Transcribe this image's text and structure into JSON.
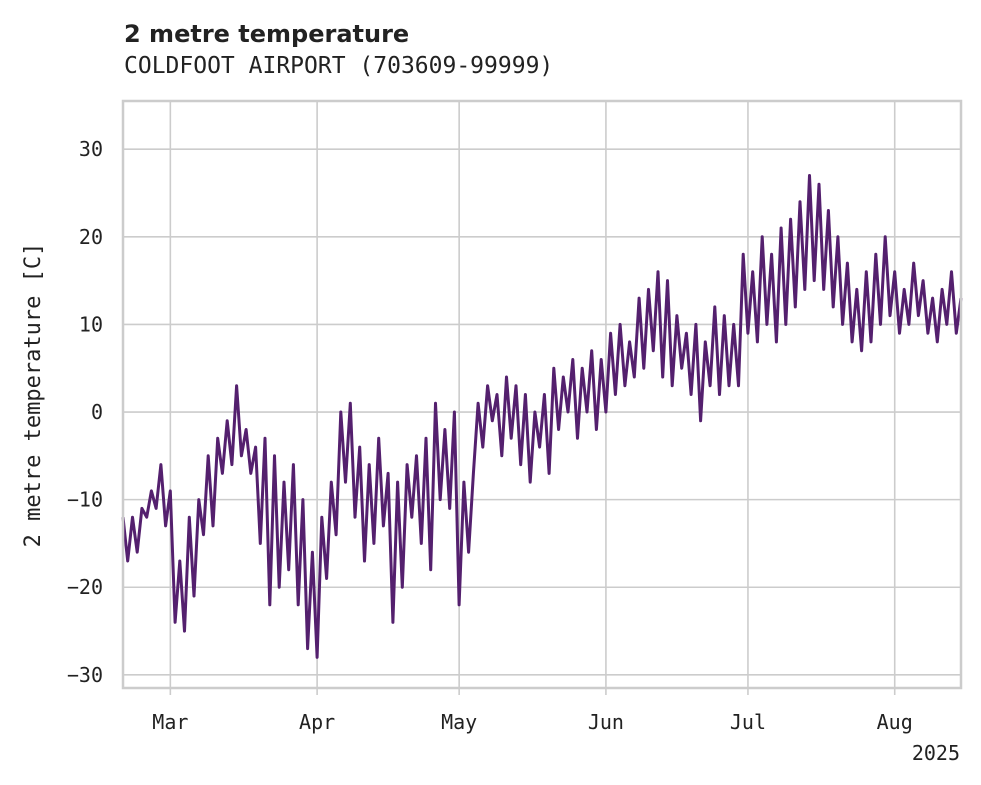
{
  "chart_data": {
    "type": "line",
    "title": "2 metre temperature",
    "subtitle": "COLDFOOT AIRPORT (703609-99999)",
    "xlabel": "",
    "ylabel": "2 metre temperature [C]",
    "x_range": [
      "2025-02-19",
      "2025-08-15"
    ],
    "ylim": [
      -31.5,
      35.5
    ],
    "y_ticks": [
      -30,
      -20,
      -10,
      0,
      10,
      20,
      30
    ],
    "x_ticks": [
      {
        "date": "2025-03-01",
        "label": "Mar"
      },
      {
        "date": "2025-04-01",
        "label": "Apr"
      },
      {
        "date": "2025-05-01",
        "label": "May"
      },
      {
        "date": "2025-06-01",
        "label": "Jun"
      },
      {
        "date": "2025-07-01",
        "label": "Jul"
      },
      {
        "date": "2025-08-01",
        "label": "Aug"
      }
    ],
    "year_label": "2025",
    "grid": true,
    "line_color": "#54206e",
    "series": [
      {
        "values": [
          {
            "x": "2025-02-19",
            "y": -12
          },
          {
            "x": "2025-02-20",
            "y": -17
          },
          {
            "x": "2025-02-21",
            "y": -12
          },
          {
            "x": "2025-02-22",
            "y": -16
          },
          {
            "x": "2025-02-23",
            "y": -11
          },
          {
            "x": "2025-02-24",
            "y": -12
          },
          {
            "x": "2025-02-25",
            "y": -9
          },
          {
            "x": "2025-02-26",
            "y": -11
          },
          {
            "x": "2025-02-27",
            "y": -6
          },
          {
            "x": "2025-02-28",
            "y": -13
          },
          {
            "x": "2025-03-01",
            "y": -9
          },
          {
            "x": "2025-03-02",
            "y": -24
          },
          {
            "x": "2025-03-03",
            "y": -17
          },
          {
            "x": "2025-03-04",
            "y": -25
          },
          {
            "x": "2025-03-05",
            "y": -12
          },
          {
            "x": "2025-03-06",
            "y": -21
          },
          {
            "x": "2025-03-07",
            "y": -10
          },
          {
            "x": "2025-03-08",
            "y": -14
          },
          {
            "x": "2025-03-09",
            "y": -5
          },
          {
            "x": "2025-03-10",
            "y": -13
          },
          {
            "x": "2025-03-11",
            "y": -3
          },
          {
            "x": "2025-03-12",
            "y": -7
          },
          {
            "x": "2025-03-13",
            "y": -1
          },
          {
            "x": "2025-03-14",
            "y": -6
          },
          {
            "x": "2025-03-15",
            "y": 3
          },
          {
            "x": "2025-03-16",
            "y": -5
          },
          {
            "x": "2025-03-17",
            "y": -2
          },
          {
            "x": "2025-03-18",
            "y": -7
          },
          {
            "x": "2025-03-19",
            "y": -4
          },
          {
            "x": "2025-03-20",
            "y": -15
          },
          {
            "x": "2025-03-21",
            "y": -3
          },
          {
            "x": "2025-03-22",
            "y": -22
          },
          {
            "x": "2025-03-23",
            "y": -5
          },
          {
            "x": "2025-03-24",
            "y": -20
          },
          {
            "x": "2025-03-25",
            "y": -8
          },
          {
            "x": "2025-03-26",
            "y": -18
          },
          {
            "x": "2025-03-27",
            "y": -6
          },
          {
            "x": "2025-03-28",
            "y": -22
          },
          {
            "x": "2025-03-29",
            "y": -10
          },
          {
            "x": "2025-03-30",
            "y": -27
          },
          {
            "x": "2025-03-31",
            "y": -16
          },
          {
            "x": "2025-04-01",
            "y": -28
          },
          {
            "x": "2025-04-02",
            "y": -12
          },
          {
            "x": "2025-04-03",
            "y": -19
          },
          {
            "x": "2025-04-04",
            "y": -8
          },
          {
            "x": "2025-04-05",
            "y": -14
          },
          {
            "x": "2025-04-06",
            "y": 0
          },
          {
            "x": "2025-04-07",
            "y": -8
          },
          {
            "x": "2025-04-08",
            "y": 1
          },
          {
            "x": "2025-04-09",
            "y": -12
          },
          {
            "x": "2025-04-10",
            "y": -4
          },
          {
            "x": "2025-04-11",
            "y": -17
          },
          {
            "x": "2025-04-12",
            "y": -6
          },
          {
            "x": "2025-04-13",
            "y": -15
          },
          {
            "x": "2025-04-14",
            "y": -3
          },
          {
            "x": "2025-04-15",
            "y": -13
          },
          {
            "x": "2025-04-16",
            "y": -7
          },
          {
            "x": "2025-04-17",
            "y": -24
          },
          {
            "x": "2025-04-18",
            "y": -8
          },
          {
            "x": "2025-04-19",
            "y": -20
          },
          {
            "x": "2025-04-20",
            "y": -6
          },
          {
            "x": "2025-04-21",
            "y": -12
          },
          {
            "x": "2025-04-22",
            "y": -5
          },
          {
            "x": "2025-04-23",
            "y": -15
          },
          {
            "x": "2025-04-24",
            "y": -3
          },
          {
            "x": "2025-04-25",
            "y": -18
          },
          {
            "x": "2025-04-26",
            "y": 1
          },
          {
            "x": "2025-04-27",
            "y": -10
          },
          {
            "x": "2025-04-28",
            "y": -2
          },
          {
            "x": "2025-04-29",
            "y": -11
          },
          {
            "x": "2025-04-30",
            "y": 0
          },
          {
            "x": "2025-05-01",
            "y": -22
          },
          {
            "x": "2025-05-02",
            "y": -8
          },
          {
            "x": "2025-05-03",
            "y": -16
          },
          {
            "x": "2025-05-04",
            "y": -7
          },
          {
            "x": "2025-05-05",
            "y": 1
          },
          {
            "x": "2025-05-06",
            "y": -4
          },
          {
            "x": "2025-05-07",
            "y": 3
          },
          {
            "x": "2025-05-08",
            "y": -1
          },
          {
            "x": "2025-05-09",
            "y": 2
          },
          {
            "x": "2025-05-10",
            "y": -5
          },
          {
            "x": "2025-05-11",
            "y": 4
          },
          {
            "x": "2025-05-12",
            "y": -3
          },
          {
            "x": "2025-05-13",
            "y": 3
          },
          {
            "x": "2025-05-14",
            "y": -6
          },
          {
            "x": "2025-05-15",
            "y": 2
          },
          {
            "x": "2025-05-16",
            "y": -8
          },
          {
            "x": "2025-05-17",
            "y": 0
          },
          {
            "x": "2025-05-18",
            "y": -4
          },
          {
            "x": "2025-05-19",
            "y": 2
          },
          {
            "x": "2025-05-20",
            "y": -7
          },
          {
            "x": "2025-05-21",
            "y": 5
          },
          {
            "x": "2025-05-22",
            "y": -2
          },
          {
            "x": "2025-05-23",
            "y": 4
          },
          {
            "x": "2025-05-24",
            "y": 0
          },
          {
            "x": "2025-05-25",
            "y": 6
          },
          {
            "x": "2025-05-26",
            "y": -3
          },
          {
            "x": "2025-05-27",
            "y": 5
          },
          {
            "x": "2025-05-28",
            "y": 0
          },
          {
            "x": "2025-05-29",
            "y": 7
          },
          {
            "x": "2025-05-30",
            "y": -2
          },
          {
            "x": "2025-05-31",
            "y": 6
          },
          {
            "x": "2025-06-01",
            "y": 0
          },
          {
            "x": "2025-06-02",
            "y": 9
          },
          {
            "x": "2025-06-03",
            "y": 2
          },
          {
            "x": "2025-06-04",
            "y": 10
          },
          {
            "x": "2025-06-05",
            "y": 3
          },
          {
            "x": "2025-06-06",
            "y": 8
          },
          {
            "x": "2025-06-07",
            "y": 4
          },
          {
            "x": "2025-06-08",
            "y": 13
          },
          {
            "x": "2025-06-09",
            "y": 5
          },
          {
            "x": "2025-06-10",
            "y": 14
          },
          {
            "x": "2025-06-11",
            "y": 7
          },
          {
            "x": "2025-06-12",
            "y": 16
          },
          {
            "x": "2025-06-13",
            "y": 4
          },
          {
            "x": "2025-06-14",
            "y": 15
          },
          {
            "x": "2025-06-15",
            "y": 3
          },
          {
            "x": "2025-06-16",
            "y": 11
          },
          {
            "x": "2025-06-17",
            "y": 5
          },
          {
            "x": "2025-06-18",
            "y": 9
          },
          {
            "x": "2025-06-19",
            "y": 2
          },
          {
            "x": "2025-06-20",
            "y": 10
          },
          {
            "x": "2025-06-21",
            "y": -1
          },
          {
            "x": "2025-06-22",
            "y": 8
          },
          {
            "x": "2025-06-23",
            "y": 3
          },
          {
            "x": "2025-06-24",
            "y": 12
          },
          {
            "x": "2025-06-25",
            "y": 2
          },
          {
            "x": "2025-06-26",
            "y": 11
          },
          {
            "x": "2025-06-27",
            "y": 3
          },
          {
            "x": "2025-06-28",
            "y": 10
          },
          {
            "x": "2025-06-29",
            "y": 3
          },
          {
            "x": "2025-06-30",
            "y": 18
          },
          {
            "x": "2025-07-01",
            "y": 9
          },
          {
            "x": "2025-07-02",
            "y": 16
          },
          {
            "x": "2025-07-03",
            "y": 8
          },
          {
            "x": "2025-07-04",
            "y": 20
          },
          {
            "x": "2025-07-05",
            "y": 10
          },
          {
            "x": "2025-07-06",
            "y": 18
          },
          {
            "x": "2025-07-07",
            "y": 8
          },
          {
            "x": "2025-07-08",
            "y": 21
          },
          {
            "x": "2025-07-09",
            "y": 10
          },
          {
            "x": "2025-07-10",
            "y": 22
          },
          {
            "x": "2025-07-11",
            "y": 12
          },
          {
            "x": "2025-07-12",
            "y": 24
          },
          {
            "x": "2025-07-13",
            "y": 14
          },
          {
            "x": "2025-07-14",
            "y": 27
          },
          {
            "x": "2025-07-15",
            "y": 15
          },
          {
            "x": "2025-07-16",
            "y": 26
          },
          {
            "x": "2025-07-17",
            "y": 14
          },
          {
            "x": "2025-07-18",
            "y": 23
          },
          {
            "x": "2025-07-19",
            "y": 12
          },
          {
            "x": "2025-07-20",
            "y": 20
          },
          {
            "x": "2025-07-21",
            "y": 10
          },
          {
            "x": "2025-07-22",
            "y": 17
          },
          {
            "x": "2025-07-23",
            "y": 8
          },
          {
            "x": "2025-07-24",
            "y": 14
          },
          {
            "x": "2025-07-25",
            "y": 7
          },
          {
            "x": "2025-07-26",
            "y": 16
          },
          {
            "x": "2025-07-27",
            "y": 8
          },
          {
            "x": "2025-07-28",
            "y": 18
          },
          {
            "x": "2025-07-29",
            "y": 10
          },
          {
            "x": "2025-07-30",
            "y": 20
          },
          {
            "x": "2025-07-31",
            "y": 11
          },
          {
            "x": "2025-08-01",
            "y": 16
          },
          {
            "x": "2025-08-02",
            "y": 9
          },
          {
            "x": "2025-08-03",
            "y": 14
          },
          {
            "x": "2025-08-04",
            "y": 10
          },
          {
            "x": "2025-08-05",
            "y": 17
          },
          {
            "x": "2025-08-06",
            "y": 11
          },
          {
            "x": "2025-08-07",
            "y": 15
          },
          {
            "x": "2025-08-08",
            "y": 9
          },
          {
            "x": "2025-08-09",
            "y": 13
          },
          {
            "x": "2025-08-10",
            "y": 8
          },
          {
            "x": "2025-08-11",
            "y": 14
          },
          {
            "x": "2025-08-12",
            "y": 10
          },
          {
            "x": "2025-08-13",
            "y": 16
          },
          {
            "x": "2025-08-14",
            "y": 9
          },
          {
            "x": "2025-08-15",
            "y": 13
          }
        ]
      }
    ]
  }
}
